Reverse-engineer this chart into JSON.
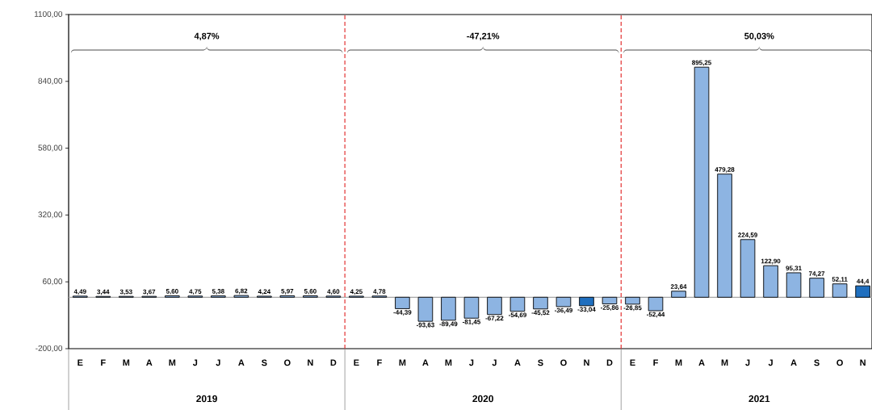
{
  "chart_data": {
    "type": "bar",
    "categories": [
      "E",
      "F",
      "M",
      "A",
      "M",
      "J",
      "J",
      "A",
      "S",
      "O",
      "N",
      "D",
      "E",
      "F",
      "M",
      "A",
      "M",
      "J",
      "J",
      "A",
      "S",
      "O",
      "N",
      "D",
      "E",
      "F",
      "M",
      "A",
      "M",
      "J",
      "J",
      "A",
      "S",
      "O",
      "N"
    ],
    "values": [
      4.49,
      3.44,
      3.53,
      3.67,
      5.6,
      4.75,
      5.38,
      6.82,
      4.24,
      5.97,
      5.6,
      4.6,
      4.25,
      4.78,
      -44.39,
      -93.63,
      -89.49,
      -81.45,
      -67.22,
      -54.69,
      -45.52,
      -36.49,
      -33.04,
      -25.86,
      -26.85,
      -52.44,
      23.64,
      895.25,
      479.28,
      224.59,
      122.9,
      95.31,
      74.27,
      52.11,
      44.4
    ],
    "value_labels": [
      "4,49",
      "3,44",
      "3,53",
      "3,67",
      "5,60",
      "4,75",
      "5,38",
      "6,82",
      "4,24",
      "5,97",
      "5,60",
      "4,60",
      "4,25",
      "4,78",
      "-44,39",
      "-93,63",
      "-89,49",
      "-81,45",
      "-67,22",
      "-54,69",
      "-45,52",
      "-36,49",
      "-33,04",
      "-25,86",
      "-26,85",
      "-52,44",
      "23,64",
      "895,25",
      "479,28",
      "224,59",
      "122,90",
      "95,31",
      "74,27",
      "52,11",
      "44,4"
    ],
    "colors": [
      "#8db4e2",
      "#8db4e2",
      "#8db4e2",
      "#8db4e2",
      "#8db4e2",
      "#8db4e2",
      "#8db4e2",
      "#8db4e2",
      "#8db4e2",
      "#8db4e2",
      "#8db4e2",
      "#8db4e2",
      "#8db4e2",
      "#8db4e2",
      "#8db4e2",
      "#8db4e2",
      "#8db4e2",
      "#8db4e2",
      "#8db4e2",
      "#8db4e2",
      "#8db4e2",
      "#8db4e2",
      "#1f6fbf",
      "#8db4e2",
      "#8db4e2",
      "#8db4e2",
      "#8db4e2",
      "#8db4e2",
      "#8db4e2",
      "#8db4e2",
      "#8db4e2",
      "#8db4e2",
      "#8db4e2",
      "#8db4e2",
      "#1f6fbf"
    ],
    "ylim": [
      -200,
      1100
    ],
    "yticks": [
      {
        "value": -200,
        "label": "-200,00"
      },
      {
        "value": 60,
        "label": "60,00"
      },
      {
        "value": 320,
        "label": "320,00"
      },
      {
        "value": 580,
        "label": "580,00"
      },
      {
        "value": 840,
        "label": "840,00"
      },
      {
        "value": 1100,
        "label": "1100,00"
      }
    ],
    "ref_lines": [
      {
        "axis": "y",
        "value": 0,
        "color": "#a6a6a6"
      }
    ],
    "annotations": [
      "4,87%",
      "-47,21%",
      "50,03%",
      "2019",
      "2020",
      "2021"
    ],
    "grid": false
  }
}
